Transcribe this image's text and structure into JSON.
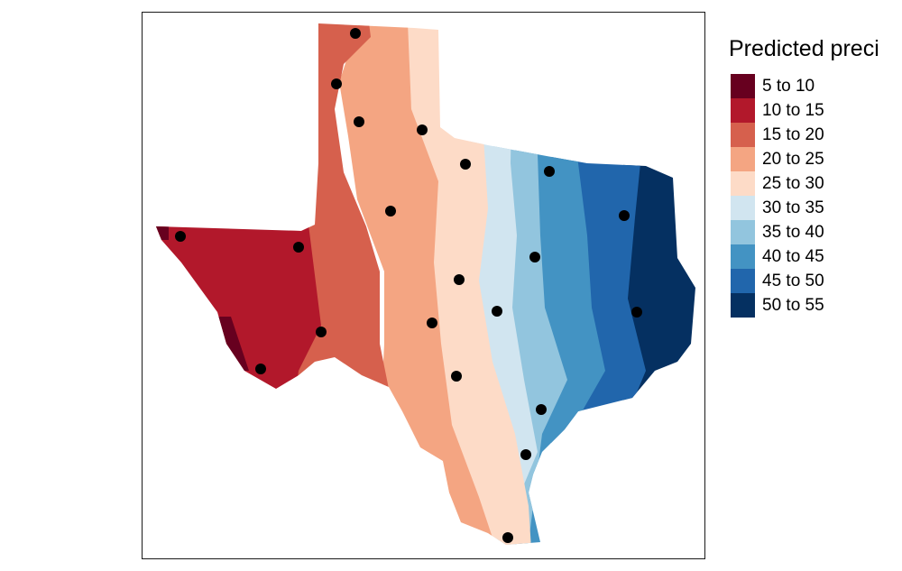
{
  "legend": {
    "title": "Predicted preci",
    "classes": [
      {
        "label": "5 to 10",
        "color": "#67001f"
      },
      {
        "label": "10 to 15",
        "color": "#b2182b"
      },
      {
        "label": "15 to 20",
        "color": "#d6604d"
      },
      {
        "label": "20 to 25",
        "color": "#f4a582"
      },
      {
        "label": "25 to 30",
        "color": "#fddbc7"
      },
      {
        "label": "30 to 35",
        "color": "#d1e5f0"
      },
      {
        "label": "35 to 40",
        "color": "#92c5de"
      },
      {
        "label": "40 to 45",
        "color": "#4393c3"
      },
      {
        "label": "45 to 50",
        "color": "#2166ac"
      },
      {
        "label": "50 to 55",
        "color": "#053061"
      }
    ]
  },
  "map": {
    "region": "Texas",
    "sample_points_count": 21,
    "point_color": "#000000",
    "panel_border": "#1a1a1a"
  }
}
